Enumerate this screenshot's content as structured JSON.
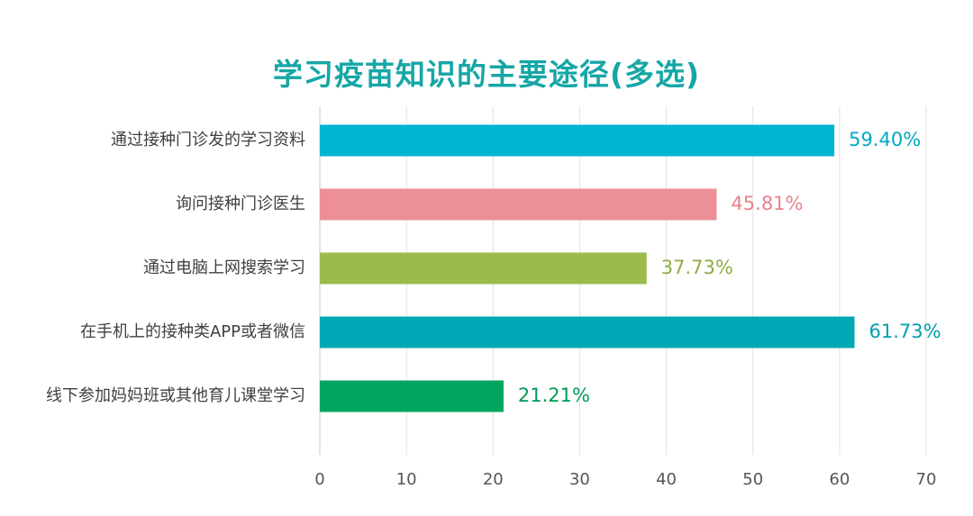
{
  "chart_data": {
    "type": "bar",
    "orientation": "horizontal",
    "title": "学习疫苗知识的主要途径(多选)",
    "categories": [
      "通过接种门诊发的学习资料",
      "询问接种门诊医生",
      "通过电脑上网搜索学习",
      "在手机上的接种类APP或者微信",
      "线下参加妈妈班或其他育儿课堂学习"
    ],
    "values": [
      59.4,
      45.81,
      37.73,
      61.73,
      21.21
    ],
    "value_labels": [
      "59.40%",
      "45.81%",
      "37.73%",
      "61.73%",
      "21.21%"
    ],
    "bar_colors": [
      "#00b4d2",
      "#ec8f97",
      "#9bbb4d",
      "#00a8b6",
      "#00a65f"
    ],
    "label_colors": [
      "#00a9c2",
      "#e8838b",
      "#8eae40",
      "#009fae",
      "#009b56"
    ],
    "xlim": [
      0,
      70
    ],
    "xticks": [
      0,
      10,
      20,
      30,
      40,
      50,
      60,
      70
    ],
    "grid": true,
    "legend": "none"
  }
}
